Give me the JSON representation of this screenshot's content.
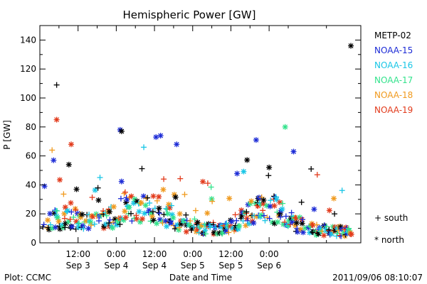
{
  "chart_data": {
    "type": "scatter",
    "title": "Hemispheric Power [GW]",
    "ylabel": "P [GW]",
    "xlabel": "Date and Time",
    "ylim": [
      0,
      150
    ],
    "yticks": [
      0,
      20,
      40,
      60,
      80,
      100,
      120,
      140
    ],
    "xlim": [
      0,
      4.2
    ],
    "x_units": "days since 2011-09-03 00:00 UT",
    "xticks": [
      {
        "x": 0.5,
        "time": "12:00",
        "date": "Sep 3"
      },
      {
        "x": 1.0,
        "time": "0:00",
        "date": "Sep 4"
      },
      {
        "x": 1.5,
        "time": "12:00",
        "date": "Sep 4"
      },
      {
        "x": 2.0,
        "time": "0:00",
        "date": "Sep 5"
      },
      {
        "x": 2.5,
        "time": "12:00",
        "date": "Sep 5"
      },
      {
        "x": 3.0,
        "time": "0:00",
        "date": "Sep 6"
      }
    ],
    "legend_placement": "right",
    "series": [
      {
        "name": "METP-02",
        "color": "#000000"
      },
      {
        "name": "NOAA-15",
        "color": "#1c2bd6"
      },
      {
        "name": "NOAA-16",
        "color": "#19c6e6"
      },
      {
        "name": "NOAA-17",
        "color": "#33e38c"
      },
      {
        "name": "NOAA-18",
        "color": "#f09a1e"
      },
      {
        "name": "NOAA-19",
        "color": "#e23a1b"
      }
    ],
    "marker_legend": [
      {
        "symbol": "+",
        "label": "south"
      },
      {
        "symbol": "*",
        "label": "north"
      }
    ]
  },
  "footer": {
    "plot_credit": "Plot: CCMC",
    "timestamp": "2011/09/06 08:10:07"
  }
}
